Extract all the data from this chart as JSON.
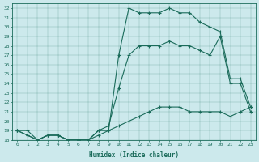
{
  "xlabel": "Humidex (Indice chaleur)",
  "x": [
    0,
    1,
    2,
    3,
    4,
    5,
    6,
    7,
    8,
    9,
    10,
    11,
    12,
    13,
    14,
    15,
    16,
    17,
    18,
    19,
    20,
    21,
    22,
    23
  ],
  "line_top": [
    19,
    19,
    18,
    18.5,
    18.5,
    18,
    18,
    18,
    19,
    19,
    27,
    32,
    31.5,
    31.5,
    31.5,
    32,
    31.5,
    31.5,
    30.5,
    30,
    29.5,
    24.5,
    24.5,
    21.5
  ],
  "line_mid": [
    19,
    18.5,
    18,
    18.5,
    18.5,
    18,
    18,
    18,
    19,
    19.5,
    23.5,
    27,
    28,
    28,
    28,
    28.5,
    28,
    28,
    27.5,
    27,
    29,
    24,
    24,
    21
  ],
  "line_bot": [
    19,
    18.5,
    18,
    18.5,
    18.5,
    18,
    18,
    18,
    18.5,
    19,
    19.5,
    20,
    20.5,
    21,
    21.5,
    21.5,
    21.5,
    21,
    21,
    21,
    21,
    20.5,
    21,
    21.5
  ],
  "line_color": "#1a6b5a",
  "bg_color": "#cce9ec",
  "ylim": [
    18,
    32.5
  ],
  "xlim": [
    -0.5,
    23.5
  ],
  "yticks": [
    18,
    19,
    20,
    21,
    22,
    23,
    24,
    25,
    26,
    27,
    28,
    29,
    30,
    31,
    32
  ],
  "xticks": [
    0,
    1,
    2,
    3,
    4,
    5,
    6,
    7,
    8,
    9,
    10,
    11,
    12,
    13,
    14,
    15,
    16,
    17,
    18,
    19,
    20,
    21,
    22,
    23
  ]
}
